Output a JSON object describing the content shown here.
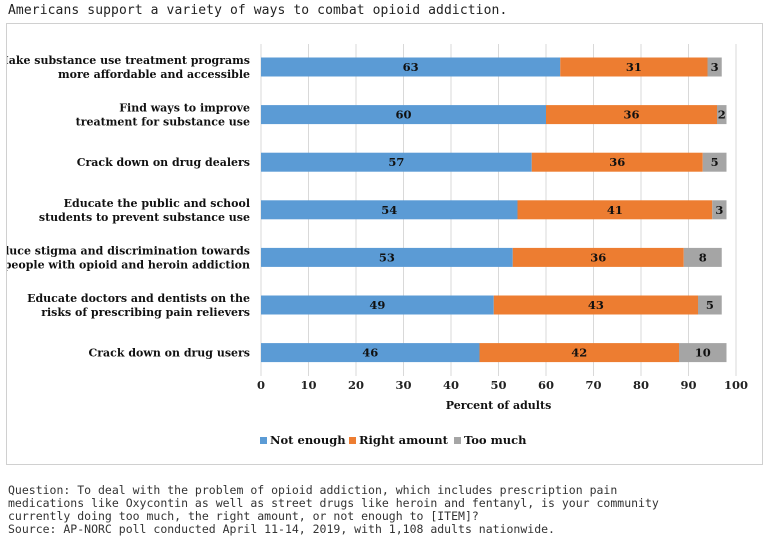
{
  "title": "Americans support a variety of ways to combat opioid addiction.",
  "footnote": {
    "question_lines": [
      "Question: To deal with the problem of opioid addiction, which includes prescription pain",
      "medications like Oxycontin as well as street drugs like heroin and fentanyl, is your community",
      "currently doing too much, the right amount, or not enough to [ITEM]?"
    ],
    "source": "Source: AP-NORC poll conducted April 11-14, 2019, with 1,108 adults nationwide."
  },
  "chart_data": {
    "type": "bar",
    "orientation": "horizontal",
    "stacked": true,
    "categories": [
      [
        "Make substance use treatment programs",
        "more affordable and accessible"
      ],
      [
        "Find ways to improve",
        "treatment for substance use"
      ],
      [
        "Crack down on drug dealers"
      ],
      [
        "Educate the public and school",
        "students to prevent substance use"
      ],
      [
        "Reduce stigma and discrimination towards",
        "people with opioid and heroin addiction"
      ],
      [
        "Educate doctors and dentists on the",
        "risks of prescribing pain relievers"
      ],
      [
        "Crack down on drug users"
      ]
    ],
    "series": [
      {
        "name": "Not enough",
        "color": "#5b9bd5",
        "values": [
          63,
          60,
          57,
          54,
          53,
          49,
          46
        ]
      },
      {
        "name": "Right amount",
        "color": "#ed7d31",
        "values": [
          31,
          36,
          36,
          41,
          36,
          43,
          42
        ]
      },
      {
        "name": "Too much",
        "color": "#a5a5a5",
        "values": [
          3,
          2,
          5,
          3,
          8,
          5,
          10
        ]
      }
    ],
    "xlabel": "Percent of adults",
    "xlim": [
      0,
      100
    ],
    "xticks": [
      0,
      10,
      20,
      30,
      40,
      50,
      60,
      70,
      80,
      90,
      100
    ],
    "grid": true,
    "legend_position": "bottom"
  }
}
